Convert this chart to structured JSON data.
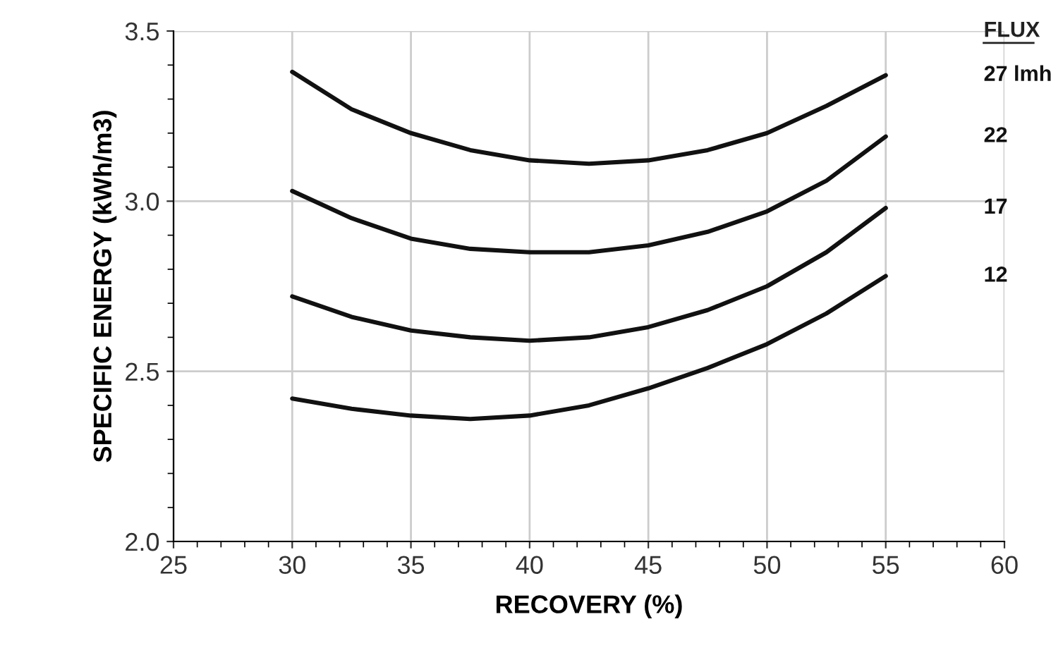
{
  "chart_data": {
    "type": "line",
    "xlabel": "RECOVERY (%)",
    "ylabel": "SPECIFIC ENERGY (kWh/m3)",
    "legend_title": "FLUX",
    "x": [
      30,
      32.5,
      35,
      37.5,
      40,
      42.5,
      45,
      47.5,
      50,
      52.5,
      55
    ],
    "series": [
      {
        "name": "27 lmh",
        "color": "#111111",
        "values": [
          3.38,
          3.27,
          3.2,
          3.15,
          3.12,
          3.11,
          3.12,
          3.15,
          3.2,
          3.28,
          3.37
        ]
      },
      {
        "name": "22",
        "color": "#111111",
        "values": [
          3.03,
          2.95,
          2.89,
          2.86,
          2.85,
          2.85,
          2.87,
          2.91,
          2.97,
          3.06,
          3.19
        ]
      },
      {
        "name": "17",
        "color": "#111111",
        "values": [
          2.72,
          2.66,
          2.62,
          2.6,
          2.59,
          2.6,
          2.63,
          2.68,
          2.75,
          2.85,
          2.98
        ]
      },
      {
        "name": "12",
        "color": "#111111",
        "values": [
          2.42,
          2.39,
          2.37,
          2.36,
          2.37,
          2.4,
          2.45,
          2.51,
          2.58,
          2.67,
          2.78
        ]
      }
    ],
    "xlim": [
      25,
      60
    ],
    "xticks": [
      25,
      30,
      35,
      40,
      45,
      50,
      55,
      60
    ],
    "ylim": [
      2.0,
      3.5
    ],
    "yticks": [
      {
        "value": 2.0,
        "label": "2.0"
      },
      {
        "value": 2.5,
        "label": "2.5"
      },
      {
        "value": 3.0,
        "label": "3.0"
      },
      {
        "value": 3.5,
        "label": "3.5"
      }
    ],
    "grid": true,
    "marker": "none",
    "line_style": "solid",
    "legend": "right"
  }
}
